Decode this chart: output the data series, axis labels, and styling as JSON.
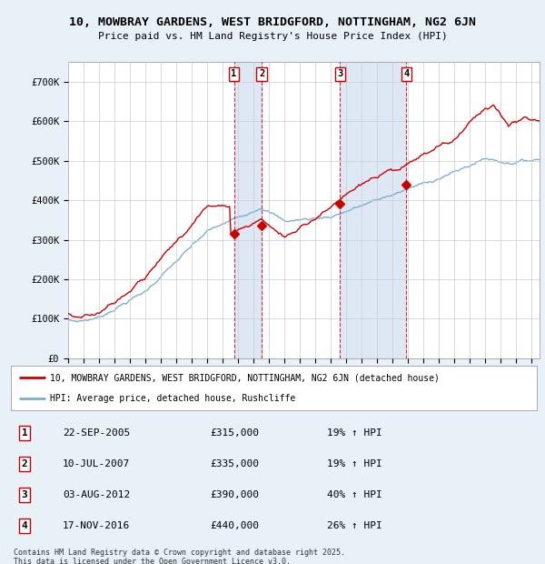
{
  "title_line1": "10, MOWBRAY GARDENS, WEST BRIDGFORD, NOTTINGHAM, NG2 6JN",
  "title_line2": "Price paid vs. HM Land Registry's House Price Index (HPI)",
  "bg_color": "#e8f0f8",
  "plot_bg": "#ffffff",
  "red_line_color": "#cc0000",
  "blue_line_color": "#7bafd4",
  "grid_color": "#cccccc",
  "shade_color": "#dde8f4",
  "purchases": [
    {
      "num": 1,
      "year": 2005.73,
      "price": 315000,
      "date": "22-SEP-2005",
      "pct": "19%"
    },
    {
      "num": 2,
      "year": 2007.53,
      "price": 335000,
      "date": "10-JUL-2007",
      "pct": "19%"
    },
    {
      "num": 3,
      "year": 2012.59,
      "price": 390000,
      "date": "03-AUG-2012",
      "pct": "40%"
    },
    {
      "num": 4,
      "year": 2016.88,
      "price": 440000,
      "date": "17-NOV-2016",
      "pct": "26%"
    }
  ],
  "xlim": [
    1995.0,
    2025.5
  ],
  "ylim": [
    0,
    750000
  ],
  "yticks": [
    0,
    100000,
    200000,
    300000,
    400000,
    500000,
    600000,
    700000
  ],
  "ytick_labels": [
    "£0",
    "£100K",
    "£200K",
    "£300K",
    "£400K",
    "£500K",
    "£600K",
    "£700K"
  ],
  "footer": "Contains HM Land Registry data © Crown copyright and database right 2025.\nThis data is licensed under the Open Government Licence v3.0.",
  "legend_label_red": "10, MOWBRAY GARDENS, WEST BRIDGFORD, NOTTINGHAM, NG2 6JN (detached house)",
  "legend_label_blue": "HPI: Average price, detached house, Rushcliffe"
}
